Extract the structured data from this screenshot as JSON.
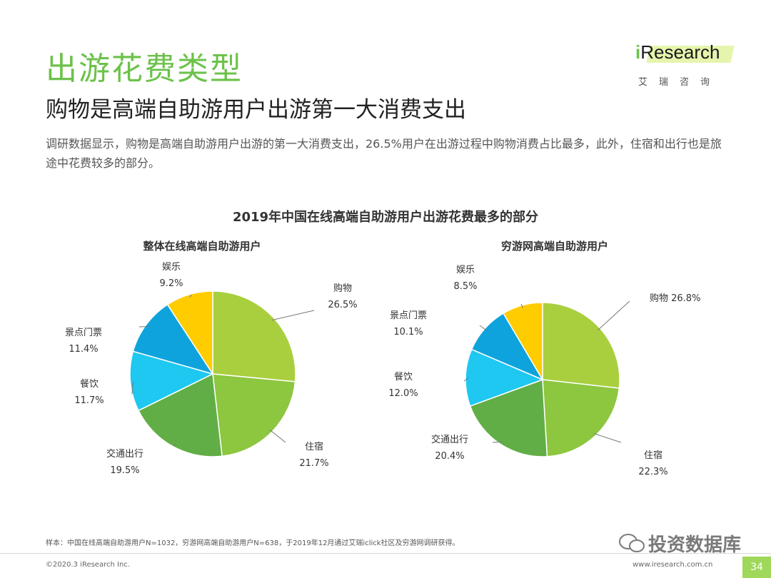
{
  "header": {
    "title": "出游花费类型",
    "subtitle": "购物是高端自助游用户出游第一大消费支出",
    "description": "调研数据显示，购物是高端自助游用户出游的第一大消费支出，26.5%用户在出游过程中购物消费占比最多，此外，住宿和出行也是旅途中花费较多的部分。"
  },
  "logo": {
    "brand": "iResearch",
    "brand_i": "i",
    "brand_rest": "Research",
    "subtitle": "艾瑞咨询"
  },
  "chart_data": {
    "type": "pie",
    "title": "2019年中国在线高端自助游用户出游花费最多的部分",
    "charts": [
      {
        "title": "整体在线高端自助游用户",
        "slices": [
          {
            "label": "购物",
            "value": 26.5,
            "display": "26.5%",
            "color": "#a9cf3e"
          },
          {
            "label": "住宿",
            "value": 21.7,
            "display": "21.7%",
            "color": "#8dc63f"
          },
          {
            "label": "交通出行",
            "value": 19.5,
            "display": "19.5%",
            "color": "#62ae46"
          },
          {
            "label": "餐饮",
            "value": 11.7,
            "display": "11.7%",
            "color": "#1ec8f0"
          },
          {
            "label": "景点门票",
            "value": 11.4,
            "display": "11.4%",
            "color": "#0fa3dd"
          },
          {
            "label": "娱乐",
            "value": 9.2,
            "display": "9.2%",
            "color": "#ffcc00"
          }
        ]
      },
      {
        "title": "穷游网高端自助游用户",
        "slices": [
          {
            "label": "购物",
            "value": 26.8,
            "display": "26.8%",
            "color": "#a9cf3e"
          },
          {
            "label": "住宿",
            "value": 22.3,
            "display": "22.3%",
            "color": "#8dc63f"
          },
          {
            "label": "交通出行",
            "value": 20.4,
            "display": "20.4%",
            "color": "#62ae46"
          },
          {
            "label": "餐饮",
            "value": 12.0,
            "display": "12.0%",
            "color": "#1ec8f0"
          },
          {
            "label": "景点门票",
            "value": 10.1,
            "display": "10.1%",
            "color": "#0fa3dd"
          },
          {
            "label": "娱乐",
            "value": 8.5,
            "display": "8.5%",
            "color": "#ffcc00"
          }
        ]
      }
    ]
  },
  "footer": {
    "footnote": "样本：中国在线高端自助游用户N=1032，穷游网高端自助游用户N=638，于2019年12月通过艾瑞iclick社区及穷游网调研获得。",
    "copyright": "©2020.3 iResearch Inc.",
    "site": "www.iresearch.com.cn",
    "page": "34",
    "watermark": "投资数据库"
  }
}
